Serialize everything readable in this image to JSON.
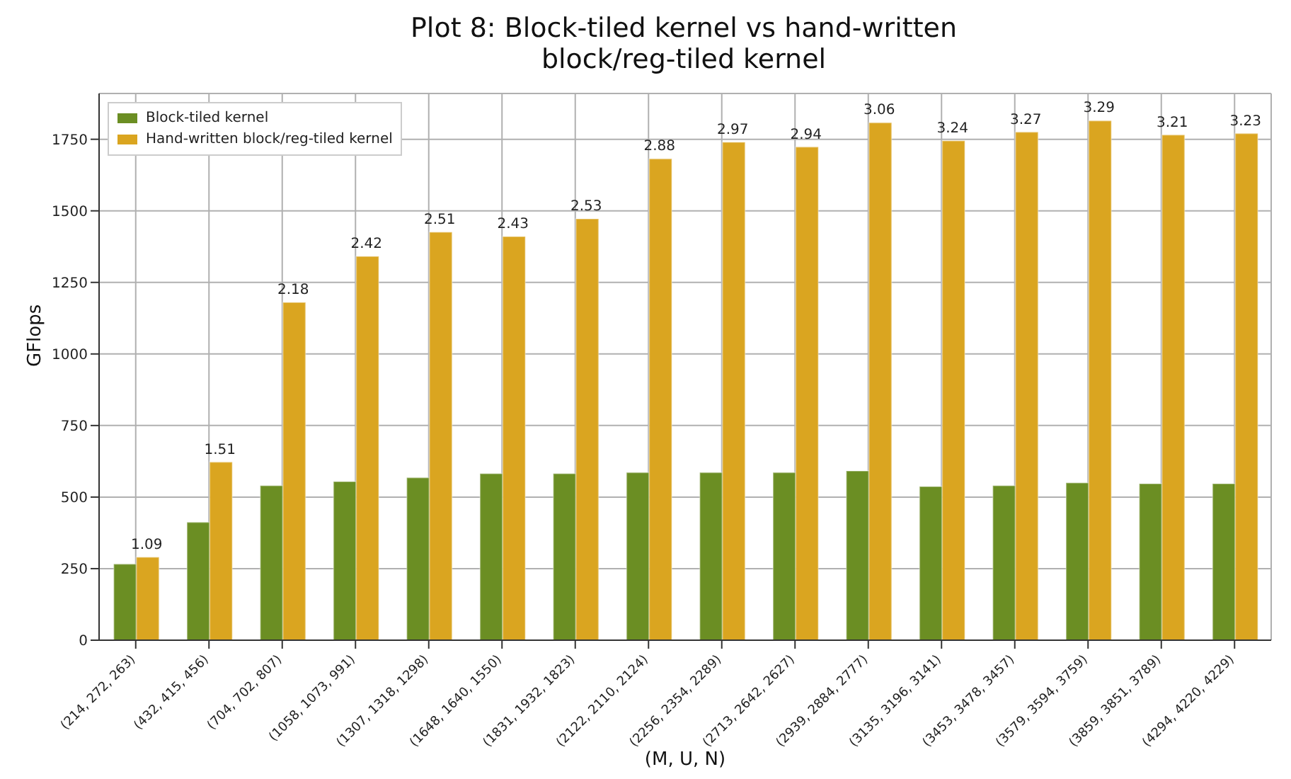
{
  "chart_data": {
    "type": "bar",
    "title": "Plot 8: Block-tiled kernel vs hand-written\nblock/reg-tiled kernel",
    "xlabel": "(M, U, N)",
    "ylabel": "GFlops",
    "categories": [
      "(214, 272, 263)",
      "(432, 415, 456)",
      "(704, 702, 807)",
      "(1058, 1073, 991)",
      "(1307, 1318, 1298)",
      "(1648, 1640, 1550)",
      "(1831, 1932, 1823)",
      "(2122, 2110, 2124)",
      "(2256, 2354, 2289)",
      "(2713, 2642, 2627)",
      "(2939, 2884, 2777)",
      "(3135, 3196, 3141)",
      "(3453, 3478, 3457)",
      "(3579, 3594, 3759)",
      "(3859, 3851, 3789)",
      "(4294, 4220, 4229)"
    ],
    "series": [
      {
        "name": "Block-tiled kernel",
        "color": "#6b8e23",
        "values": [
          266,
          412,
          540,
          554,
          568,
          582,
          582,
          586,
          586,
          586,
          591,
          537,
          540,
          550,
          547,
          547
        ]
      },
      {
        "name": "Hand-written block/reg-tiled kernel",
        "color": "#daa520",
        "values": [
          290,
          622,
          1180,
          1341,
          1426,
          1410,
          1472,
          1682,
          1740,
          1723,
          1808,
          1745,
          1775,
          1815,
          1765,
          1770
        ]
      }
    ],
    "annotations": [
      {
        "text": "1.09",
        "x": "(214, 272, 263)",
        "y": 290
      },
      {
        "text": "1.51",
        "x": "(432, 415, 456)",
        "y": 622
      },
      {
        "text": "2.18",
        "x": "(704, 702, 807)",
        "y": 1180
      },
      {
        "text": "2.42",
        "x": "(1058, 1073, 991)",
        "y": 1341
      },
      {
        "text": "2.51",
        "x": "(1307, 1318, 1298)",
        "y": 1426
      },
      {
        "text": "2.43",
        "x": "(1648, 1640, 1550)",
        "y": 1410
      },
      {
        "text": "2.53",
        "x": "(1831, 1932, 1823)",
        "y": 1472
      },
      {
        "text": "2.88",
        "x": "(2122, 2110, 2124)",
        "y": 1682
      },
      {
        "text": "2.97",
        "x": "(2256, 2354, 2289)",
        "y": 1740
      },
      {
        "text": "2.94",
        "x": "(2713, 2642, 2627)",
        "y": 1723
      },
      {
        "text": "3.06",
        "x": "(2939, 2884, 2777)",
        "y": 1808
      },
      {
        "text": "3.24",
        "x": "(3135, 3196, 3141)",
        "y": 1745
      },
      {
        "text": "3.27",
        "x": "(3453, 3478, 3457)",
        "y": 1775
      },
      {
        "text": "3.29",
        "x": "(3579, 3594, 3759)",
        "y": 1815
      },
      {
        "text": "3.21",
        "x": "(3859, 3851, 3789)",
        "y": 1765
      },
      {
        "text": "3.23",
        "x": "(4294, 4220, 4229)",
        "y": 1770
      }
    ],
    "ylim": [
      0,
      1910
    ],
    "yticks": [
      0,
      250,
      500,
      750,
      1000,
      1250,
      1500,
      1750
    ],
    "grid": true,
    "legend": "top left"
  }
}
